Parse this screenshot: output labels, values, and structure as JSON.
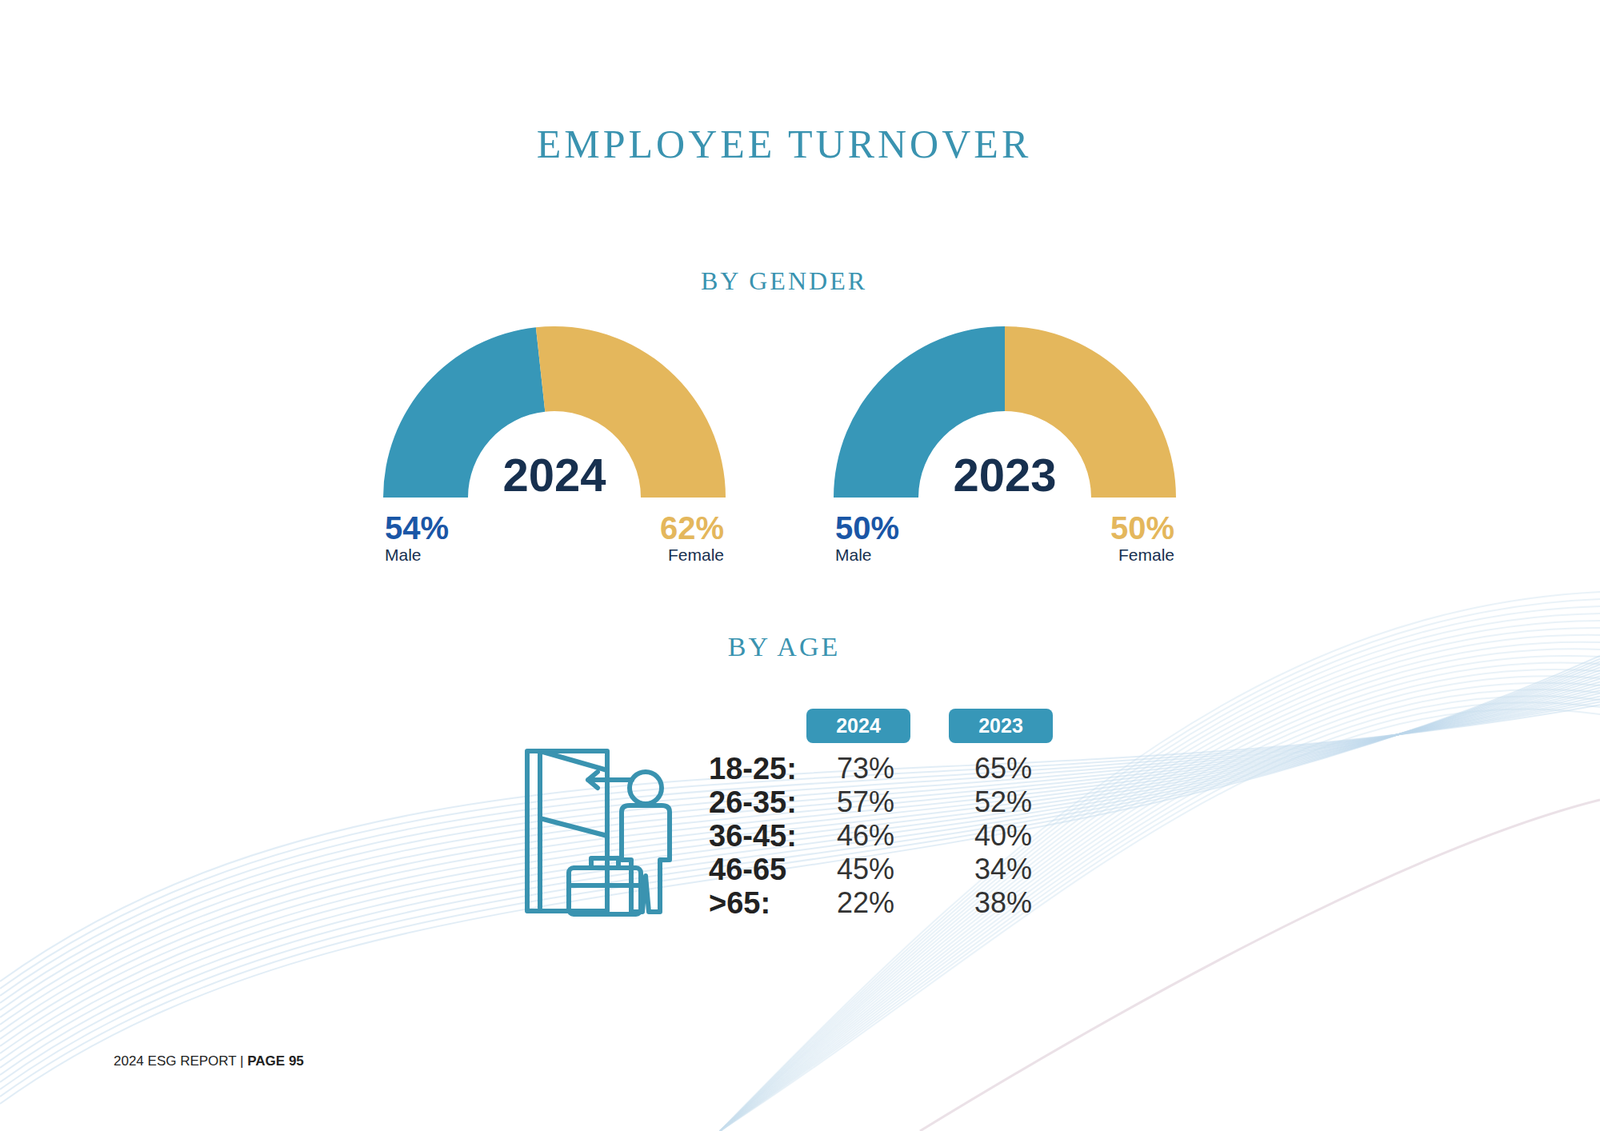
{
  "title": "EMPLOYEE TURNOVER",
  "gender_heading": "BY GENDER",
  "chart_data": [
    {
      "type": "pie",
      "title": "2024",
      "categories": [
        "Male",
        "Female"
      ],
      "values": [
        54,
        62
      ],
      "value_labels": [
        "54%",
        "62%"
      ],
      "colors": [
        "#3797b8",
        "#e4b75c"
      ]
    },
    {
      "type": "pie",
      "title": "2023",
      "categories": [
        "Male",
        "Female"
      ],
      "values": [
        50,
        50
      ],
      "value_labels": [
        "50%",
        "50%"
      ],
      "colors": [
        "#3797b8",
        "#e4b75c"
      ]
    }
  ],
  "age_heading": "BY AGE",
  "age_table": {
    "columns": [
      "2024",
      "2023"
    ],
    "rows": [
      [
        "18-25:",
        "73%",
        "65%"
      ],
      [
        "26-35:",
        "57%",
        "52%"
      ],
      [
        "36-45:",
        "46%",
        "40%"
      ],
      [
        "46-65",
        "45%",
        "34%"
      ],
      [
        ">65:",
        "22%",
        "38%"
      ]
    ]
  },
  "footer": [
    "2024 ESG REPORT |",
    "PAGE 95"
  ]
}
